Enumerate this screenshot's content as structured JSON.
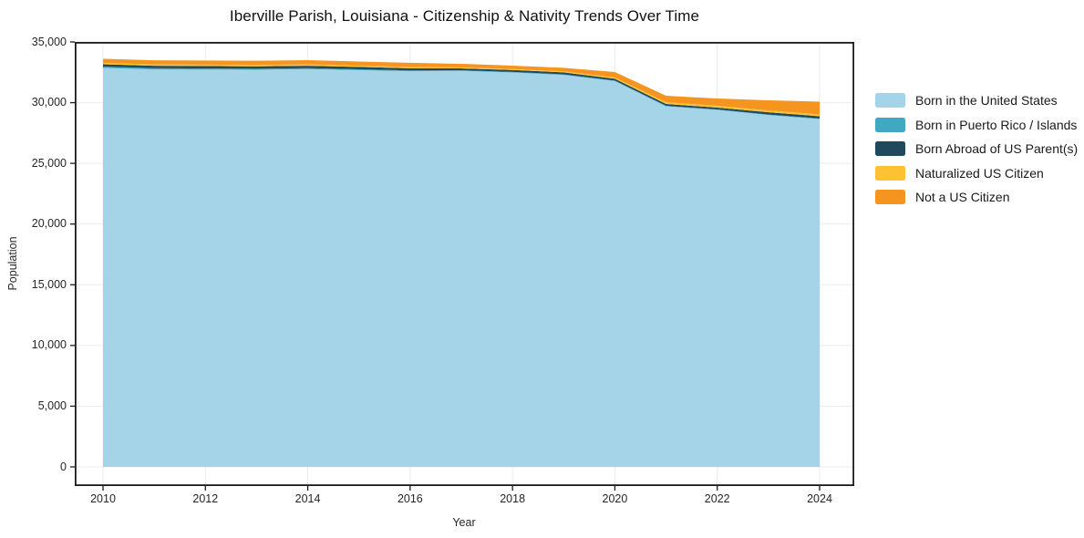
{
  "title": "Iberville Parish, Louisiana - Citizenship & Nativity Trends Over Time",
  "colors": {
    "spine": "#1a1a1a",
    "grid": "#ebebeb",
    "tick": "#1a1a1a",
    "background": "#ffffff"
  },
  "chart_data": {
    "type": "area",
    "stacked": true,
    "title": "Iberville Parish, Louisiana - Citizenship & Nativity Trends Over Time",
    "xlabel": "Year",
    "ylabel": "Population",
    "grid": true,
    "legend_position": "right",
    "ylim": [
      -1575,
      35000
    ],
    "x": [
      2010,
      2011,
      2012,
      2013,
      2014,
      2015,
      2016,
      2017,
      2018,
      2019,
      2020,
      2021,
      2022,
      2023,
      2024
    ],
    "xticks": [
      2010,
      2012,
      2014,
      2016,
      2018,
      2020,
      2022,
      2024
    ],
    "xtick_labels": [
      "2010",
      "2012",
      "2014",
      "2016",
      "2018",
      "2020",
      "2022",
      "2024"
    ],
    "yticks": [
      0,
      5000,
      10000,
      15000,
      20000,
      25000,
      30000,
      35000
    ],
    "ytick_labels": [
      "0",
      "5,000",
      "10,000",
      "15,000",
      "20,000",
      "25,000",
      "30,000",
      "35,000"
    ],
    "series": [
      {
        "name": "Born in the United States",
        "color": "#a5d3e8",
        "values": [
          32860,
          32740,
          32720,
          32710,
          32760,
          32680,
          32590,
          32620,
          32480,
          32280,
          31780,
          29700,
          29400,
          28980,
          28650
        ]
      },
      {
        "name": "Born in Puerto Rico / Islands",
        "color": "#41a8c4",
        "values": [
          110,
          100,
          90,
          80,
          80,
          70,
          60,
          50,
          50,
          50,
          40,
          40,
          40,
          40,
          40
        ]
      },
      {
        "name": "Born Abroad of US Parent(s)",
        "color": "#1f4a5e",
        "values": [
          190,
          200,
          210,
          200,
          200,
          190,
          180,
          150,
          160,
          160,
          150,
          150,
          150,
          190,
          190
        ]
      },
      {
        "name": "Naturalized US Citizen",
        "color": "#fcc232",
        "values": [
          110,
          110,
          110,
          110,
          110,
          100,
          100,
          80,
          80,
          90,
          100,
          150,
          150,
          150,
          150
        ]
      },
      {
        "name": "Not a US Citizen",
        "color": "#f5941f",
        "values": [
          340,
          340,
          340,
          350,
          350,
          350,
          350,
          300,
          280,
          290,
          450,
          530,
          600,
          830,
          1050
        ]
      }
    ]
  }
}
